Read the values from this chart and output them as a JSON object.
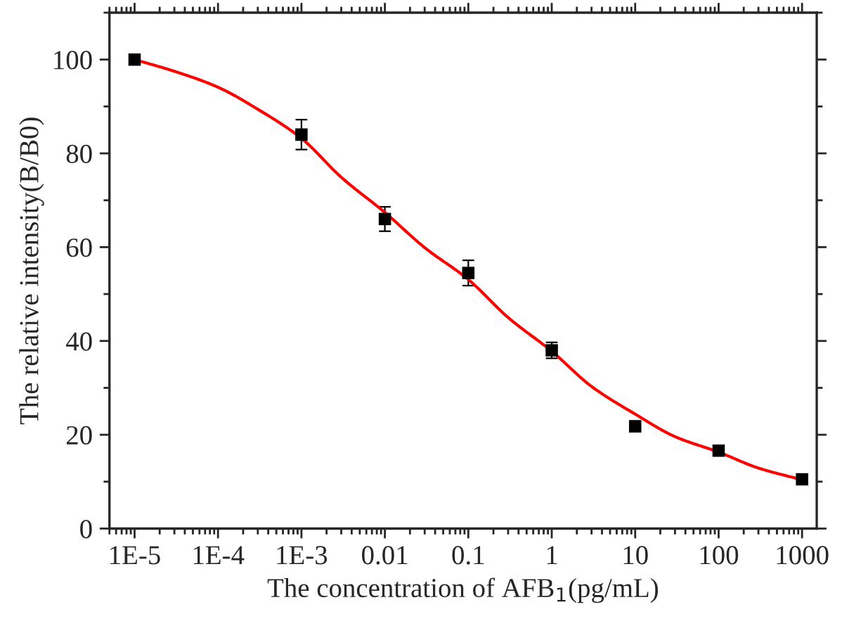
{
  "chart_data": {
    "type": "scatter",
    "xlabel": "The concentration of AFB$_{1}$(pg/mL)",
    "ylabel": "The relative intensity(B/B0)",
    "log": "x",
    "xlim": [
      5e-06,
      1500
    ],
    "ylim": [
      0,
      110
    ],
    "xticks": [
      {
        "value": 1e-05,
        "label": "1E-5"
      },
      {
        "value": 0.0001,
        "label": "1E-4"
      },
      {
        "value": 0.001,
        "label": "1E-3"
      },
      0.01,
      0.1,
      1,
      10,
      100,
      1000
    ],
    "yticks": [
      0,
      20,
      40,
      60,
      80,
      100
    ],
    "grid": false,
    "legend": false,
    "series": [
      {
        "marker": "square",
        "color": "#000000",
        "x": [
          1e-05,
          0.001,
          0.01,
          0.1,
          1,
          10,
          100,
          1000
        ],
        "values": [
          100,
          84,
          66,
          54.5,
          38,
          21.8,
          16.6,
          10.5
        ],
        "errors": [
          null,
          3.2,
          2.6,
          2.7,
          1.7,
          null,
          null,
          null
        ]
      },
      {
        "type": "line",
        "line_style": "solid",
        "color": "#ff0000",
        "x": [
          1e-05,
          3e-05,
          0.0001,
          0.0003,
          0.001,
          0.003,
          0.01,
          0.03,
          0.1,
          0.3,
          1,
          3,
          10,
          30,
          100,
          300,
          1000
        ],
        "values": [
          100,
          97.5,
          94.1,
          89.4,
          83.2,
          74.9,
          67.4,
          59.9,
          53.1,
          45.0,
          37.8,
          30.3,
          24.4,
          19.6,
          16.3,
          12.9,
          10.4
        ]
      }
    ]
  }
}
